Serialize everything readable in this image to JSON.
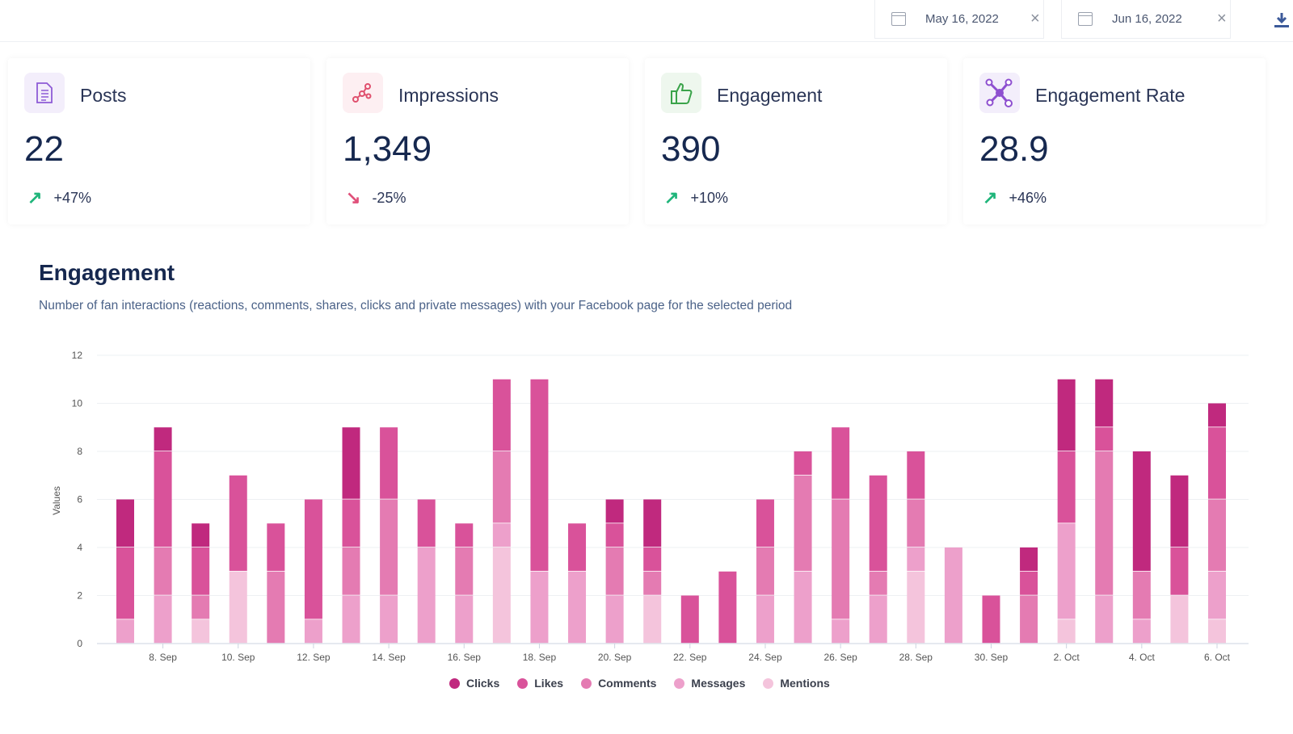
{
  "toolbar": {
    "start_date": "May 16, 2022",
    "end_date": "Jun 16, 2022",
    "clear_icon": "×",
    "download_icon": "download-icon"
  },
  "cards": [
    {
      "title": "Posts",
      "value": "22",
      "change": "+47%",
      "trend": "up",
      "icon": "document-icon",
      "icon_color": "#8e5bd6",
      "icon_bg": "#f3eefb"
    },
    {
      "title": "Impressions",
      "value": "1,349",
      "change": "-25%",
      "trend": "down",
      "icon": "share-nodes-icon",
      "icon_color": "#e0506e",
      "icon_bg": "#fdeff2"
    },
    {
      "title": "Engagement",
      "value": "390",
      "change": "+10%",
      "trend": "up",
      "icon": "thumbs-up-icon",
      "icon_color": "#3aa34a",
      "icon_bg": "#eef7ee"
    },
    {
      "title": "Engagement Rate",
      "value": "28.9",
      "change": "+46%",
      "trend": "up",
      "icon": "network-icon",
      "icon_color": "#8e4fd0",
      "icon_bg": "#f3eefb"
    }
  ],
  "colors": {
    "up": "#1fb57a",
    "down": "#e0507a"
  },
  "section": {
    "title": "Engagement",
    "subtitle": "Number of fan interactions (reactions, comments, shares, clicks and private messages) with your Facebook page for the selected period"
  },
  "chart_data": {
    "type": "bar",
    "stacked": true,
    "ylabel": "Values",
    "ylim": [
      0,
      12
    ],
    "yticks": [
      0,
      2,
      4,
      6,
      8,
      10,
      12
    ],
    "grid": true,
    "legend": "bottom",
    "categories": [
      "7. Sep",
      "8. Sep",
      "9. Sep",
      "10. Sep",
      "11. Sep",
      "12. Sep",
      "13. Sep",
      "14. Sep",
      "15. Sep",
      "16. Sep",
      "17. Sep",
      "18. Sep",
      "19. Sep",
      "20. Sep",
      "21. Sep",
      "22. Sep",
      "23. Sep",
      "24. Sep",
      "25. Sep",
      "26. Sep",
      "27. Sep",
      "28. Sep",
      "29. Sep",
      "30. Sep",
      "1. Oct",
      "2. Oct",
      "3. Oct",
      "4. Oct",
      "5. Oct",
      "6. Oct"
    ],
    "tick_labels": [
      "8. Sep",
      "10. Sep",
      "12. Sep",
      "14. Sep",
      "16. Sep",
      "18. Sep",
      "20. Sep",
      "22. Sep",
      "24. Sep",
      "26. Sep",
      "28. Sep",
      "30. Sep",
      "2. Oct",
      "4. Oct",
      "6. Oct"
    ],
    "series": [
      {
        "name": "Clicks",
        "color": "#c0297e",
        "values": [
          2,
          1,
          1,
          0,
          0,
          0,
          3,
          0,
          0,
          0,
          0,
          0,
          0,
          1,
          2,
          0,
          0,
          0,
          0,
          0,
          0,
          0,
          0,
          0,
          1,
          3,
          2,
          5,
          3,
          1
        ]
      },
      {
        "name": "Likes",
        "color": "#d9529a",
        "values": [
          3,
          4,
          2,
          4,
          2,
          5,
          2,
          3,
          2,
          1,
          3,
          8,
          2,
          1,
          1,
          2,
          3,
          2,
          1,
          3,
          4,
          2,
          0,
          2,
          1,
          3,
          1,
          0,
          2,
          3
        ]
      },
      {
        "name": "Comments",
        "color": "#e47bb2",
        "values": [
          0,
          2,
          1,
          0,
          3,
          0,
          2,
          4,
          0,
          2,
          3,
          0,
          0,
          2,
          1,
          0,
          0,
          2,
          4,
          5,
          1,
          2,
          0,
          0,
          2,
          0,
          6,
          2,
          0,
          3
        ]
      },
      {
        "name": "Messages",
        "color": "#eda0cb",
        "values": [
          1,
          2,
          0,
          0,
          0,
          1,
          2,
          2,
          4,
          2,
          1,
          3,
          3,
          2,
          0,
          0,
          0,
          2,
          3,
          1,
          2,
          1,
          4,
          0,
          0,
          4,
          2,
          1,
          0,
          2
        ]
      },
      {
        "name": "Mentions",
        "color": "#f4c4dc",
        "values": [
          0,
          0,
          1,
          3,
          0,
          0,
          0,
          0,
          0,
          0,
          4,
          0,
          0,
          0,
          2,
          0,
          0,
          0,
          0,
          0,
          0,
          3,
          0,
          0,
          0,
          1,
          0,
          0,
          2,
          1
        ]
      }
    ]
  }
}
